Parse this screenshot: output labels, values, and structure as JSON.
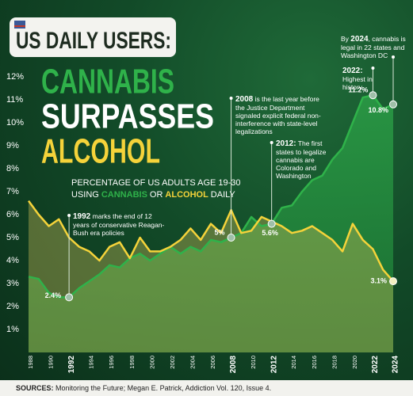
{
  "chart_data": {
    "type": "line",
    "title": [
      "US DAILY USERS:",
      "CANNABIS",
      "SURPASSES",
      "ALCOHOL"
    ],
    "subtitle": [
      "PERCENTAGE OF US ADULTS AGE 19-30",
      "USING",
      "OR",
      "DAILY"
    ],
    "x": [
      1988,
      1989,
      1990,
      1991,
      1992,
      1993,
      1994,
      1995,
      1996,
      1997,
      1998,
      1999,
      2000,
      2001,
      2002,
      2003,
      2004,
      2005,
      2006,
      2007,
      2008,
      2009,
      2010,
      2011,
      2012,
      2013,
      2014,
      2015,
      2016,
      2017,
      2018,
      2019,
      2020,
      2021,
      2022,
      2023,
      2024
    ],
    "xlim": [
      1988,
      2024
    ],
    "xticks": [
      1988,
      1990,
      1992,
      1994,
      1996,
      1998,
      2000,
      2002,
      2004,
      2006,
      2008,
      2010,
      2012,
      2014,
      2016,
      2018,
      2020,
      2022,
      2024
    ],
    "ylim": [
      0,
      12.5
    ],
    "yticks": [
      {
        "value": 1,
        "label": "1%"
      },
      {
        "value": 2,
        "label": "2%"
      },
      {
        "value": 3,
        "label": "3%"
      },
      {
        "value": 4,
        "label": "4%"
      },
      {
        "value": 5,
        "label": "5%"
      },
      {
        "value": 6,
        "label": "6%"
      },
      {
        "value": 7,
        "label": "7%"
      },
      {
        "value": 8,
        "label": "8%"
      },
      {
        "value": 9,
        "label": "9%"
      },
      {
        "value": 10,
        "label": "10%"
      },
      {
        "value": 11,
        "label": "11%"
      },
      {
        "value": 12,
        "label": "12%"
      }
    ],
    "grid": false,
    "series": [
      {
        "name": "CANNABIS",
        "color": "#2fb24a",
        "values": [
          3.3,
          3.2,
          2.6,
          2.4,
          2.4,
          2.8,
          3.1,
          3.4,
          3.8,
          3.7,
          4.1,
          4.3,
          4.0,
          4.3,
          4.6,
          4.3,
          4.6,
          4.4,
          4.9,
          4.8,
          5.0,
          5.2,
          5.9,
          5.5,
          5.6,
          6.3,
          6.4,
          7.0,
          7.5,
          7.7,
          8.4,
          8.9,
          10.0,
          11.1,
          11.2,
          10.6,
          10.8
        ],
        "value_labels": [
          null,
          null,
          null,
          null,
          "2.4%",
          null,
          null,
          null,
          null,
          null,
          null,
          null,
          null,
          null,
          null,
          null,
          null,
          null,
          null,
          null,
          "5%",
          null,
          null,
          null,
          "5.6%",
          null,
          null,
          null,
          null,
          null,
          null,
          null,
          null,
          null,
          "11.2%",
          null,
          "10.8%"
        ]
      },
      {
        "name": "ALCOHOL",
        "color": "#f5d33a",
        "values": [
          6.6,
          6.0,
          5.5,
          5.8,
          5.0,
          4.6,
          4.4,
          4.0,
          4.6,
          4.8,
          4.1,
          5.0,
          4.4,
          4.4,
          4.6,
          4.9,
          5.4,
          4.9,
          5.6,
          5.2,
          6.2,
          5.2,
          5.3,
          5.9,
          5.7,
          5.5,
          5.2,
          5.3,
          5.5,
          5.2,
          4.9,
          4.4,
          5.6,
          4.9,
          4.5,
          3.6,
          3.1
        ],
        "value_labels": [
          null,
          null,
          null,
          null,
          null,
          null,
          null,
          null,
          null,
          null,
          null,
          null,
          null,
          null,
          null,
          null,
          null,
          null,
          null,
          null,
          null,
          null,
          null,
          null,
          null,
          null,
          null,
          null,
          null,
          null,
          null,
          null,
          null,
          null,
          null,
          null,
          "3.1%"
        ]
      }
    ],
    "annotations": [
      {
        "year": 1992,
        "text": "marks the end of 12 years of conservative Reagan-Bush era policies"
      },
      {
        "year": 2008,
        "text": "is the last year before the Justice Department signaled explicit federal non-interference with state-level legalizations"
      },
      {
        "year": {
          "value": 2012,
          "label": "2012:"
        },
        "text": "The first states to legalize cannabis are Colorado and Washington"
      },
      {
        "year": {
          "value": 2022,
          "label": "2022:"
        },
        "text": "Highest in history"
      },
      {
        "prefix": "By",
        "year": 2024,
        "text": ", cannabis is legal in 22 states and Washington DC"
      }
    ],
    "source_label": "SOURCES:",
    "source": "Monitoring the Future; Megan E. Patrick, Addiction Vol. 120, Issue 4."
  }
}
